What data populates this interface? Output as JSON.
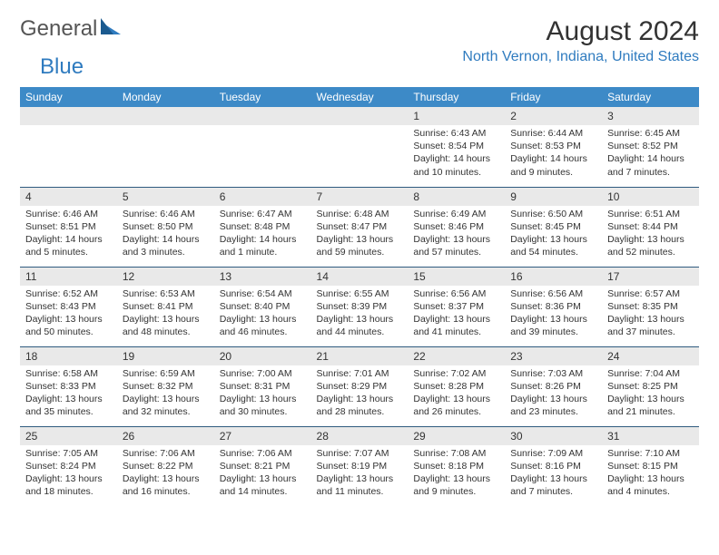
{
  "brand": {
    "part1": "General",
    "part2": "Blue"
  },
  "title": "August 2024",
  "location": "North Vernon, Indiana, United States",
  "colors": {
    "header_bg": "#3d8ac7",
    "accent": "#2f7bbf",
    "row_border": "#2f5b7f",
    "daynum_bg": "#e9e9e9",
    "text": "#333333",
    "background": "#ffffff"
  },
  "weekdays": [
    "Sunday",
    "Monday",
    "Tuesday",
    "Wednesday",
    "Thursday",
    "Friday",
    "Saturday"
  ],
  "first_weekday_index": 4,
  "days": [
    {
      "n": 1,
      "sr": "6:43 AM",
      "ss": "8:54 PM",
      "dl": "14 hours and 10 minutes."
    },
    {
      "n": 2,
      "sr": "6:44 AM",
      "ss": "8:53 PM",
      "dl": "14 hours and 9 minutes."
    },
    {
      "n": 3,
      "sr": "6:45 AM",
      "ss": "8:52 PM",
      "dl": "14 hours and 7 minutes."
    },
    {
      "n": 4,
      "sr": "6:46 AM",
      "ss": "8:51 PM",
      "dl": "14 hours and 5 minutes."
    },
    {
      "n": 5,
      "sr": "6:46 AM",
      "ss": "8:50 PM",
      "dl": "14 hours and 3 minutes."
    },
    {
      "n": 6,
      "sr": "6:47 AM",
      "ss": "8:48 PM",
      "dl": "14 hours and 1 minute."
    },
    {
      "n": 7,
      "sr": "6:48 AM",
      "ss": "8:47 PM",
      "dl": "13 hours and 59 minutes."
    },
    {
      "n": 8,
      "sr": "6:49 AM",
      "ss": "8:46 PM",
      "dl": "13 hours and 57 minutes."
    },
    {
      "n": 9,
      "sr": "6:50 AM",
      "ss": "8:45 PM",
      "dl": "13 hours and 54 minutes."
    },
    {
      "n": 10,
      "sr": "6:51 AM",
      "ss": "8:44 PM",
      "dl": "13 hours and 52 minutes."
    },
    {
      "n": 11,
      "sr": "6:52 AM",
      "ss": "8:43 PM",
      "dl": "13 hours and 50 minutes."
    },
    {
      "n": 12,
      "sr": "6:53 AM",
      "ss": "8:41 PM",
      "dl": "13 hours and 48 minutes."
    },
    {
      "n": 13,
      "sr": "6:54 AM",
      "ss": "8:40 PM",
      "dl": "13 hours and 46 minutes."
    },
    {
      "n": 14,
      "sr": "6:55 AM",
      "ss": "8:39 PM",
      "dl": "13 hours and 44 minutes."
    },
    {
      "n": 15,
      "sr": "6:56 AM",
      "ss": "8:37 PM",
      "dl": "13 hours and 41 minutes."
    },
    {
      "n": 16,
      "sr": "6:56 AM",
      "ss": "8:36 PM",
      "dl": "13 hours and 39 minutes."
    },
    {
      "n": 17,
      "sr": "6:57 AM",
      "ss": "8:35 PM",
      "dl": "13 hours and 37 minutes."
    },
    {
      "n": 18,
      "sr": "6:58 AM",
      "ss": "8:33 PM",
      "dl": "13 hours and 35 minutes."
    },
    {
      "n": 19,
      "sr": "6:59 AM",
      "ss": "8:32 PM",
      "dl": "13 hours and 32 minutes."
    },
    {
      "n": 20,
      "sr": "7:00 AM",
      "ss": "8:31 PM",
      "dl": "13 hours and 30 minutes."
    },
    {
      "n": 21,
      "sr": "7:01 AM",
      "ss": "8:29 PM",
      "dl": "13 hours and 28 minutes."
    },
    {
      "n": 22,
      "sr": "7:02 AM",
      "ss": "8:28 PM",
      "dl": "13 hours and 26 minutes."
    },
    {
      "n": 23,
      "sr": "7:03 AM",
      "ss": "8:26 PM",
      "dl": "13 hours and 23 minutes."
    },
    {
      "n": 24,
      "sr": "7:04 AM",
      "ss": "8:25 PM",
      "dl": "13 hours and 21 minutes."
    },
    {
      "n": 25,
      "sr": "7:05 AM",
      "ss": "8:24 PM",
      "dl": "13 hours and 18 minutes."
    },
    {
      "n": 26,
      "sr": "7:06 AM",
      "ss": "8:22 PM",
      "dl": "13 hours and 16 minutes."
    },
    {
      "n": 27,
      "sr": "7:06 AM",
      "ss": "8:21 PM",
      "dl": "13 hours and 14 minutes."
    },
    {
      "n": 28,
      "sr": "7:07 AM",
      "ss": "8:19 PM",
      "dl": "13 hours and 11 minutes."
    },
    {
      "n": 29,
      "sr": "7:08 AM",
      "ss": "8:18 PM",
      "dl": "13 hours and 9 minutes."
    },
    {
      "n": 30,
      "sr": "7:09 AM",
      "ss": "8:16 PM",
      "dl": "13 hours and 7 minutes."
    },
    {
      "n": 31,
      "sr": "7:10 AM",
      "ss": "8:15 PM",
      "dl": "13 hours and 4 minutes."
    }
  ],
  "labels": {
    "sunrise": "Sunrise:",
    "sunset": "Sunset:",
    "daylight": "Daylight:"
  }
}
